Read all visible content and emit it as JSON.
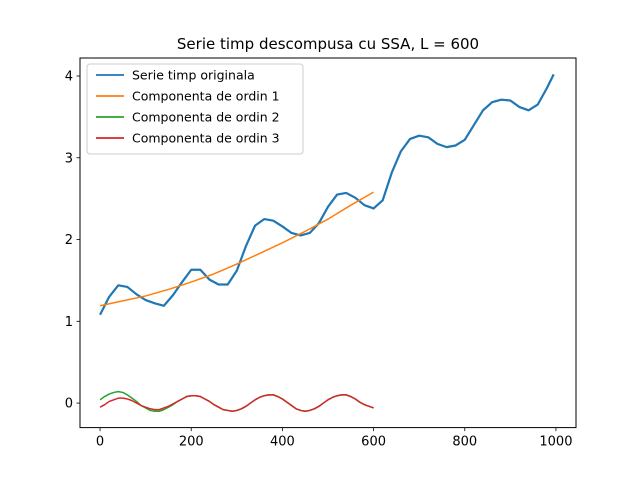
{
  "chart_data": {
    "type": "line",
    "title": "Serie timp descompusa cu SSA, L = 600",
    "xlim": [
      -44,
      1044
    ],
    "ylim": [
      -0.3,
      4.22
    ],
    "xticks": [
      0,
      200,
      400,
      600,
      800,
      1000
    ],
    "yticks": [
      0,
      1,
      2,
      3,
      4
    ],
    "legend_position": "top-left",
    "grid": false,
    "series": [
      {
        "name": "Serie timp originala",
        "color": "#1f77b4",
        "x": [
          0,
          20,
          40,
          60,
          80,
          100,
          120,
          140,
          160,
          180,
          200,
          220,
          240,
          260,
          280,
          300,
          320,
          340,
          360,
          380,
          400,
          420,
          440,
          460,
          480,
          500,
          520,
          540,
          560,
          580,
          600,
          620,
          640,
          660,
          680,
          700,
          720,
          740,
          760,
          780,
          800,
          820,
          840,
          860,
          880,
          900,
          920,
          940,
          960,
          980,
          995
        ],
        "y": [
          1.08,
          1.3,
          1.44,
          1.42,
          1.33,
          1.26,
          1.22,
          1.19,
          1.32,
          1.48,
          1.63,
          1.63,
          1.51,
          1.45,
          1.45,
          1.62,
          1.92,
          2.17,
          2.25,
          2.23,
          2.16,
          2.08,
          2.05,
          2.08,
          2.2,
          2.4,
          2.55,
          2.57,
          2.51,
          2.42,
          2.38,
          2.48,
          2.82,
          3.08,
          3.23,
          3.27,
          3.25,
          3.17,
          3.13,
          3.15,
          3.22,
          3.4,
          3.58,
          3.68,
          3.71,
          3.7,
          3.62,
          3.58,
          3.65,
          3.85,
          4.02
        ]
      },
      {
        "name": "Componenta de ordin 1",
        "color": "#ff7f0e",
        "x": [
          0,
          50,
          100,
          150,
          200,
          250,
          300,
          350,
          400,
          450,
          500,
          550,
          600
        ],
        "y": [
          1.19,
          1.25,
          1.31,
          1.39,
          1.48,
          1.58,
          1.7,
          1.83,
          1.96,
          2.1,
          2.25,
          2.42,
          2.58
        ]
      },
      {
        "name": "Componenta de ordin 2",
        "color": "#2ca02c",
        "x": [
          0,
          10,
          20,
          30,
          40,
          50,
          60,
          70,
          80,
          90,
          100,
          110,
          120,
          130,
          140,
          150,
          160,
          170,
          180,
          190,
          200,
          210,
          220,
          230,
          240,
          250,
          260,
          270,
          280,
          290,
          300,
          310,
          320,
          330,
          340,
          350,
          360,
          370,
          380,
          390,
          400,
          410,
          420,
          430,
          440,
          450,
          460,
          470,
          480,
          490,
          500,
          510,
          520,
          530,
          540,
          550,
          560,
          570,
          580,
          590,
          600
        ],
        "y": [
          0.04,
          0.08,
          0.11,
          0.13,
          0.14,
          0.13,
          0.1,
          0.06,
          0.02,
          -0.03,
          -0.06,
          -0.09,
          -0.1,
          -0.1,
          -0.08,
          -0.05,
          -0.02,
          0.02,
          0.05,
          0.08,
          0.09,
          0.09,
          0.08,
          0.05,
          0.02,
          -0.02,
          -0.05,
          -0.08,
          -0.09,
          -0.1,
          -0.09,
          -0.07,
          -0.04,
          0.0,
          0.04,
          0.07,
          0.09,
          0.1,
          0.1,
          0.08,
          0.05,
          0.01,
          -0.03,
          -0.07,
          -0.09,
          -0.1,
          -0.09,
          -0.07,
          -0.04,
          0.0,
          0.04,
          0.07,
          0.09,
          0.1,
          0.1,
          0.08,
          0.05,
          0.01,
          -0.02,
          -0.04,
          -0.06
        ]
      },
      {
        "name": "Componenta de ordin 3",
        "color": "#d62728",
        "x": [
          0,
          10,
          20,
          30,
          40,
          50,
          60,
          70,
          80,
          90,
          100,
          110,
          120,
          130,
          140,
          150,
          160,
          170,
          180,
          190,
          200,
          210,
          220,
          230,
          240,
          250,
          260,
          270,
          280,
          290,
          300,
          310,
          320,
          330,
          340,
          350,
          360,
          370,
          380,
          390,
          400,
          410,
          420,
          430,
          440,
          450,
          460,
          470,
          480,
          490,
          500,
          510,
          520,
          530,
          540,
          550,
          560,
          570,
          580,
          590,
          600
        ],
        "y": [
          -0.05,
          -0.02,
          0.02,
          0.04,
          0.06,
          0.06,
          0.05,
          0.03,
          0.0,
          -0.03,
          -0.05,
          -0.07,
          -0.08,
          -0.08,
          -0.06,
          -0.04,
          -0.01,
          0.02,
          0.05,
          0.08,
          0.09,
          0.09,
          0.08,
          0.05,
          0.02,
          -0.02,
          -0.05,
          -0.08,
          -0.09,
          -0.1,
          -0.09,
          -0.07,
          -0.04,
          0.0,
          0.04,
          0.07,
          0.09,
          0.1,
          0.1,
          0.08,
          0.05,
          0.01,
          -0.03,
          -0.07,
          -0.09,
          -0.1,
          -0.09,
          -0.07,
          -0.04,
          0.0,
          0.04,
          0.07,
          0.09,
          0.1,
          0.1,
          0.08,
          0.05,
          0.01,
          -0.02,
          -0.04,
          -0.06
        ]
      }
    ]
  }
}
